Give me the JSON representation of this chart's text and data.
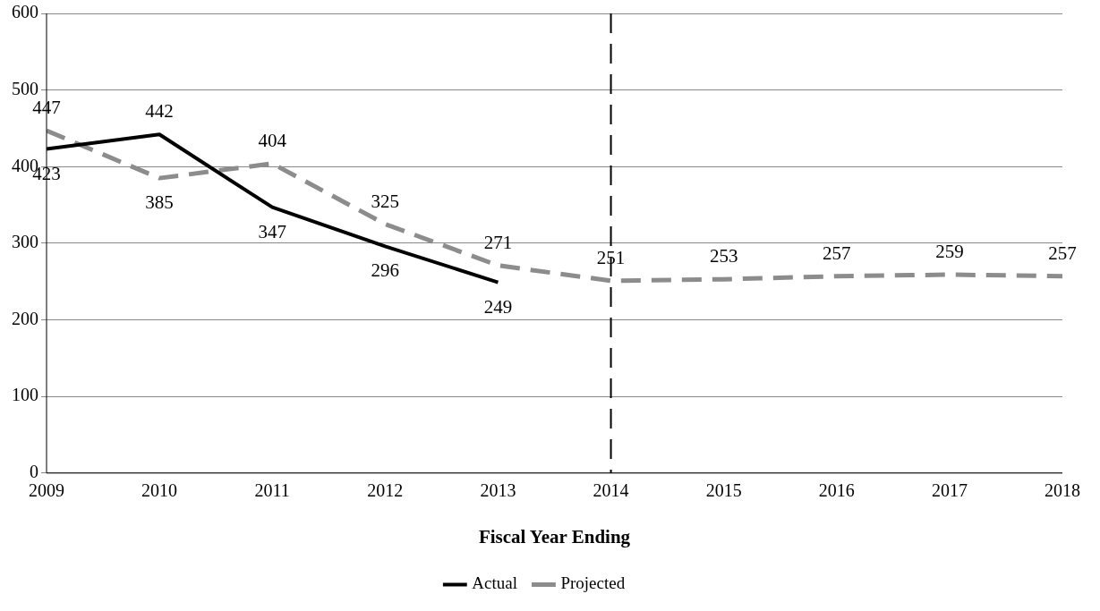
{
  "chart_data": {
    "type": "line",
    "xlabel": "Fiscal Year Ending",
    "x": [
      2009,
      2010,
      2011,
      2012,
      2013,
      2014,
      2015,
      2016,
      2017,
      2018
    ],
    "xlim": [
      2009,
      2018
    ],
    "xticks": [
      2009,
      2010,
      2011,
      2012,
      2013,
      2014,
      2015,
      2016,
      2017,
      2018
    ],
    "ylim": [
      0,
      600
    ],
    "yticks": [
      0,
      100,
      200,
      300,
      400,
      500,
      600
    ],
    "grid": "y",
    "legend": "bottom",
    "marker": "none",
    "data_labels": true,
    "series": [
      {
        "name": "Actual",
        "color": "#000000",
        "line_style": "solid",
        "values": [
          423,
          442,
          347,
          296,
          249,
          null,
          null,
          null,
          null,
          null
        ]
      },
      {
        "name": "Projected",
        "color": "#8c8c8c",
        "line_style": "dashed",
        "values": [
          447,
          385,
          404,
          325,
          271,
          251,
          253,
          257,
          259,
          257
        ]
      }
    ],
    "ref_lines": [
      {
        "axis": "x",
        "value": 2014,
        "color": "#000000",
        "line_style": "dashed"
      }
    ]
  }
}
